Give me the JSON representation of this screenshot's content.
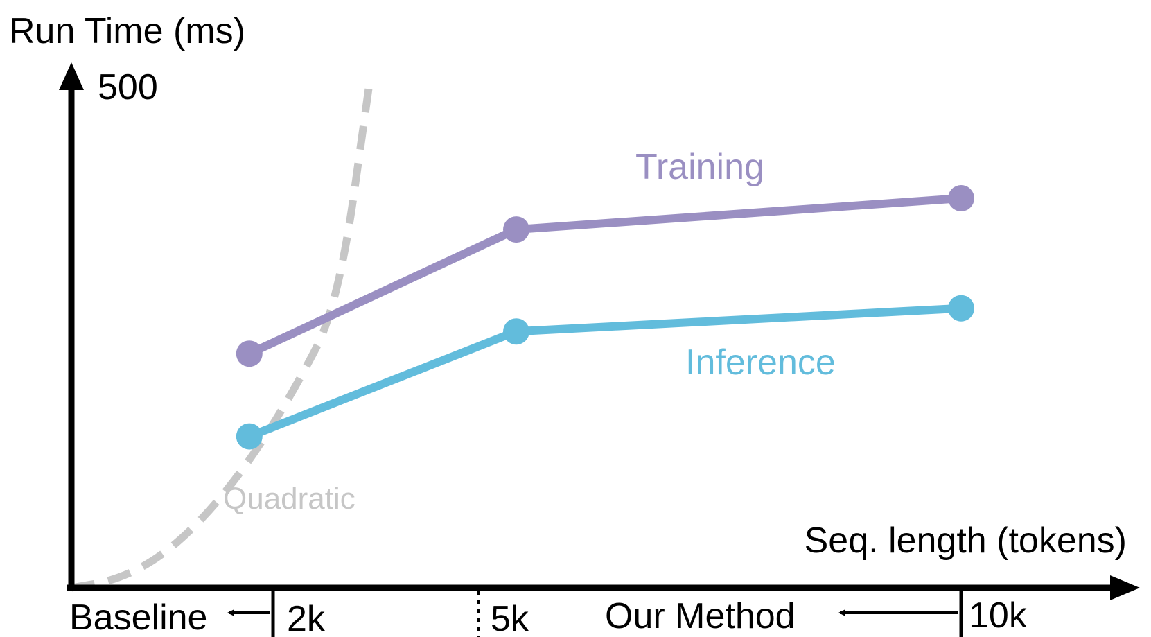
{
  "chart_data": {
    "type": "line",
    "ylabel": "Run Time (ms)",
    "xlabel": "Seq. length (tokens)",
    "y_ticks": [
      "500"
    ],
    "x_ticks": [
      "2k",
      "5k",
      "10k"
    ],
    "x_tick_values": [
      2000,
      5000,
      10000
    ],
    "xlim": [
      0,
      12500
    ],
    "ylim": [
      0,
      500
    ],
    "series": [
      {
        "name": "Training",
        "color": "#9a8fc2",
        "x": [
          2000,
          5000,
          10000
        ],
        "y": [
          232,
          355,
          386
        ]
      },
      {
        "name": "Inference",
        "color": "#62bcdc",
        "x": [
          2000,
          5000,
          10000
        ],
        "y": [
          150,
          254,
          277
        ]
      }
    ],
    "reference_curve": {
      "name": "Quadratic",
      "style": "dashed",
      "color": "#c6c6c6",
      "x": [
        0,
        500,
        1000,
        1500,
        2000,
        2500,
        3000,
        3350
      ],
      "y": [
        0,
        7.5,
        30,
        70,
        125,
        195,
        280,
        500
      ]
    },
    "annotations": [
      {
        "text": "Baseline",
        "arrow": "left",
        "from_tick": "2k"
      },
      {
        "text": "Our Method",
        "arrow": "left",
        "from_tick": "10k"
      }
    ],
    "grid": false,
    "legend": "inline labels"
  }
}
